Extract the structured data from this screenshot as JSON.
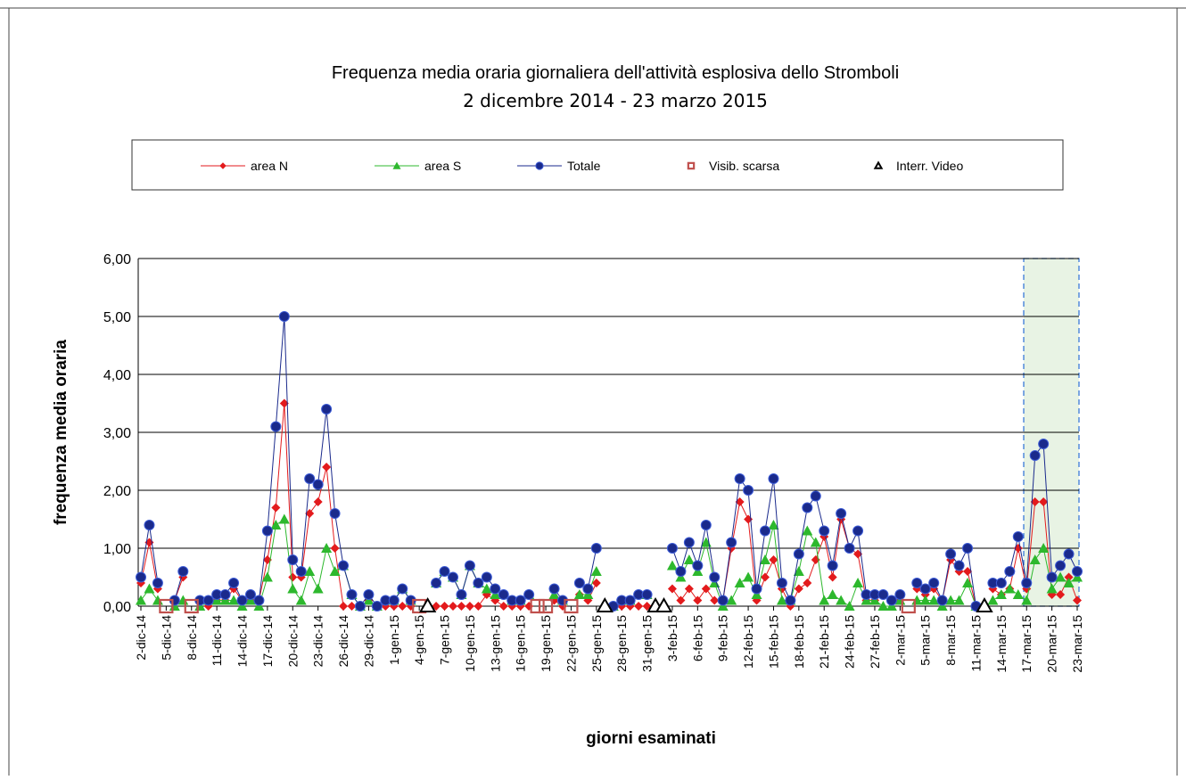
{
  "chart_data": {
    "type": "line",
    "title": "Frequenza media oraria giornaliera dell'attività esplosiva dello Stromboli",
    "subtitle": "2 dicembre 2014 - 23 marzo 2015",
    "y_label": "frequenza media oraria",
    "x_label": "giorni esaminati",
    "categories": [
      "2-dic-14",
      null,
      null,
      "5-dic-14",
      null,
      null,
      "8-dic-14",
      null,
      null,
      "11-dic-14",
      null,
      null,
      "14-dic-14",
      null,
      null,
      "17-dic-14",
      null,
      null,
      "20-dic-14",
      null,
      null,
      "23-dic-14",
      null,
      null,
      "26-dic-14",
      null,
      null,
      "29-dic-14",
      null,
      null,
      "1-gen-15",
      null,
      null,
      "4-gen-15",
      null,
      null,
      "7-gen-15",
      null,
      null,
      "10-gen-15",
      null,
      null,
      "13-gen-15",
      null,
      null,
      "16-gen-15",
      null,
      null,
      "19-gen-15",
      null,
      null,
      "22-gen-15",
      null,
      null,
      "25-gen-15",
      null,
      null,
      "28-gen-15",
      null,
      null,
      "31-gen-15",
      null,
      null,
      "3-feb-15",
      null,
      null,
      "6-feb-15",
      null,
      null,
      "9-feb-15",
      null,
      null,
      "12-feb-15",
      null,
      null,
      "15-feb-15",
      null,
      null,
      "18-feb-15",
      null,
      null,
      "21-feb-15",
      null,
      null,
      "24-feb-15",
      null,
      null,
      "27-feb-15",
      null,
      null,
      "2-mar-15",
      null,
      null,
      "5-mar-15",
      null,
      null,
      "8-mar-15",
      null,
      null,
      "11-mar-15",
      null,
      null,
      "14-mar-15",
      null,
      null,
      "17-mar-15",
      null,
      null,
      "20-mar-15",
      null,
      null,
      "23-mar-15"
    ],
    "series": [
      {
        "name": "area N",
        "color": "#e31a1c",
        "marker": "diamond",
        "line": true,
        "values": [
          0.4,
          1.1,
          0.3,
          null,
          0.1,
          0.5,
          null,
          0.1,
          0,
          0.1,
          0.1,
          0.3,
          0.1,
          0.1,
          0.1,
          0.8,
          1.7,
          3.5,
          0.5,
          0.5,
          1.6,
          1.8,
          2.4,
          1.0,
          0,
          0,
          0,
          0.1,
          0,
          0,
          0,
          0,
          0,
          null,
          null,
          0,
          0,
          0,
          0,
          0,
          0,
          0.2,
          0.1,
          0,
          0,
          0,
          0,
          null,
          null,
          0.1,
          0,
          null,
          0.2,
          0.1,
          0.4,
          null,
          0,
          0,
          0,
          0,
          0,
          null,
          null,
          0.3,
          0.1,
          0.3,
          0.1,
          0.3,
          0.1,
          0.1,
          1.0,
          1.8,
          1.5,
          0.1,
          0.5,
          0.8,
          0.3,
          0,
          0.3,
          0.4,
          0.8,
          1.2,
          0.5,
          1.5,
          1.0,
          0.9,
          0.1,
          0.1,
          0.2,
          0.1,
          0.1,
          null,
          0.3,
          0.2,
          0.3,
          0.1,
          0.8,
          0.6,
          0.6,
          0,
          null,
          0.3,
          0.2,
          0.3,
          1.0,
          0.3,
          1.8,
          1.8,
          0.2,
          0.2,
          0.5,
          0.1
        ]
      },
      {
        "name": "area S",
        "color": "#2db82d",
        "marker": "triangle",
        "line": true,
        "values": [
          0.1,
          0.3,
          0.1,
          null,
          0,
          0.1,
          null,
          0,
          0.1,
          0.1,
          0.1,
          0.1,
          0,
          0.1,
          0,
          0.5,
          1.4,
          1.5,
          0.3,
          0.1,
          0.6,
          0.3,
          1.0,
          0.6,
          0.7,
          0.2,
          0,
          0.1,
          0,
          0.1,
          0.1,
          0.3,
          0.1,
          null,
          null,
          0.4,
          0.6,
          0.5,
          0.2,
          0.7,
          0.4,
          0.3,
          0.2,
          0.2,
          0.1,
          0.1,
          0.2,
          null,
          null,
          0.2,
          0.1,
          null,
          0.2,
          0.2,
          0.6,
          null,
          0,
          0.1,
          0.1,
          0.2,
          0.2,
          null,
          null,
          0.7,
          0.5,
          0.8,
          0.6,
          1.1,
          0.4,
          0,
          0.1,
          0.4,
          0.5,
          0.2,
          0.8,
          1.4,
          0.1,
          0.1,
          0.6,
          1.3,
          1.1,
          0.1,
          0.2,
          0.1,
          0,
          0.4,
          0.1,
          0.1,
          0,
          0,
          0.1,
          null,
          0.1,
          0.1,
          0.1,
          0,
          0.1,
          0.1,
          0.4,
          0,
          null,
          0.1,
          0.2,
          0.3,
          0.2,
          0.1,
          0.8,
          1.0,
          0.3,
          0.5,
          0.4,
          0.5
        ]
      },
      {
        "name": "Totale",
        "color": "#1a2a8c",
        "marker": "circle",
        "line": true,
        "values": [
          0.5,
          1.4,
          0.4,
          null,
          0.1,
          0.6,
          null,
          0.1,
          0.1,
          0.2,
          0.2,
          0.4,
          0.1,
          0.2,
          0.1,
          1.3,
          3.1,
          5.0,
          0.8,
          0.6,
          2.2,
          2.1,
          3.4,
          1.6,
          0.7,
          0.2,
          0,
          0.2,
          0,
          0.1,
          0.1,
          0.3,
          0.1,
          null,
          null,
          0.4,
          0.6,
          0.5,
          0.2,
          0.7,
          0.4,
          0.5,
          0.3,
          0.2,
          0.1,
          0.1,
          0.2,
          null,
          null,
          0.3,
          0.1,
          null,
          0.4,
          0.3,
          1.0,
          null,
          0,
          0.1,
          0.1,
          0.2,
          0.2,
          null,
          null,
          1.0,
          0.6,
          1.1,
          0.7,
          1.4,
          0.5,
          0.1,
          1.1,
          2.2,
          2.0,
          0.3,
          1.3,
          2.2,
          0.4,
          0.1,
          0.9,
          1.7,
          1.9,
          1.3,
          0.7,
          1.6,
          1.0,
          1.3,
          0.2,
          0.2,
          0.2,
          0.1,
          0.2,
          null,
          0.4,
          0.3,
          0.4,
          0.1,
          0.9,
          0.7,
          1.0,
          0,
          null,
          0.4,
          0.4,
          0.6,
          1.2,
          0.4,
          2.6,
          2.8,
          0.5,
          0.7,
          0.9,
          0.6
        ]
      },
      {
        "name": "Visib. scarsa",
        "color": "#c0504d",
        "marker": "square",
        "line": false,
        "values": [
          null,
          null,
          null,
          0,
          null,
          null,
          0,
          null,
          null,
          null,
          null,
          null,
          null,
          null,
          null,
          null,
          null,
          null,
          null,
          null,
          null,
          null,
          null,
          null,
          null,
          null,
          null,
          null,
          null,
          null,
          null,
          null,
          null,
          0,
          null,
          null,
          null,
          null,
          null,
          null,
          null,
          null,
          null,
          null,
          null,
          null,
          null,
          0,
          0,
          null,
          null,
          0,
          null,
          null,
          null,
          null,
          null,
          null,
          null,
          null,
          null,
          null,
          null,
          null,
          null,
          null,
          null,
          null,
          null,
          null,
          null,
          null,
          null,
          null,
          null,
          null,
          null,
          null,
          null,
          null,
          null,
          null,
          null,
          null,
          null,
          null,
          null,
          null,
          null,
          null,
          null,
          0,
          null,
          null,
          null,
          null,
          null,
          null,
          null,
          null,
          null,
          null,
          null,
          null,
          null,
          null,
          null,
          null,
          null,
          null,
          null,
          null
        ]
      },
      {
        "name": "Interr. Video",
        "color": "#000000",
        "marker": "open-triangle",
        "line": false,
        "values": [
          null,
          null,
          null,
          null,
          null,
          null,
          null,
          null,
          null,
          null,
          null,
          null,
          null,
          null,
          null,
          null,
          null,
          null,
          null,
          null,
          null,
          null,
          null,
          null,
          null,
          null,
          null,
          null,
          null,
          null,
          null,
          null,
          null,
          null,
          0,
          null,
          null,
          null,
          null,
          null,
          null,
          null,
          null,
          null,
          null,
          null,
          null,
          null,
          null,
          null,
          null,
          null,
          null,
          null,
          null,
          0,
          null,
          null,
          null,
          null,
          null,
          0,
          0,
          null,
          null,
          null,
          null,
          null,
          null,
          null,
          null,
          null,
          null,
          null,
          null,
          null,
          null,
          null,
          null,
          null,
          null,
          null,
          null,
          null,
          null,
          null,
          null,
          null,
          null,
          null,
          null,
          null,
          null,
          null,
          null,
          null,
          null,
          null,
          null,
          null,
          0,
          null,
          null,
          null,
          null,
          null,
          null,
          null,
          null,
          null,
          null,
          null
        ]
      }
    ],
    "ylim": [
      0,
      6
    ],
    "yticks": [
      {
        "value": 0,
        "label": "0,00"
      },
      {
        "value": 1,
        "label": "1,00"
      },
      {
        "value": 2,
        "label": "2,00"
      },
      {
        "value": 3,
        "label": "3,00"
      },
      {
        "value": 4,
        "label": "4,00"
      },
      {
        "value": 5,
        "label": "5,00"
      },
      {
        "value": 6,
        "label": "6,00"
      }
    ],
    "grid": true
  }
}
